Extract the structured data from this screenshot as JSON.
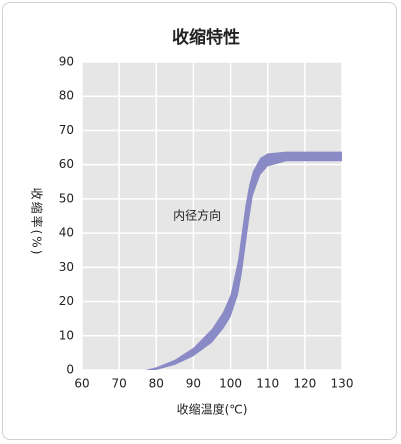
{
  "chart_data": {
    "type": "band",
    "title": "收缩特性",
    "xlabel": "收缩温度(℃)",
    "ylabel": "收缩率(%)",
    "annotation": {
      "text": "内径方向",
      "x": 91,
      "y": 45
    },
    "x": [
      77,
      80,
      85,
      90,
      95,
      98,
      100,
      102,
      103,
      104,
      105,
      106,
      108,
      110,
      115,
      130
    ],
    "high": [
      0,
      0.8,
      3,
      6.5,
      12,
      17,
      22,
      32,
      40,
      48,
      54,
      58,
      62,
      63.3,
      63.8,
      63.8
    ],
    "low": [
      0,
      0,
      1.5,
      4,
      8,
      12,
      15.5,
      22,
      28,
      36,
      44,
      51,
      57,
      59.5,
      61,
      61
    ],
    "color": "#8a8ac6",
    "xlim": [
      60,
      130
    ],
    "xticks": [
      60,
      70,
      80,
      90,
      100,
      110,
      120,
      130
    ],
    "ylim": [
      0,
      90
    ],
    "yticks": [
      0,
      10,
      20,
      30,
      40,
      50,
      60,
      70,
      80,
      90
    ],
    "grid": true
  }
}
